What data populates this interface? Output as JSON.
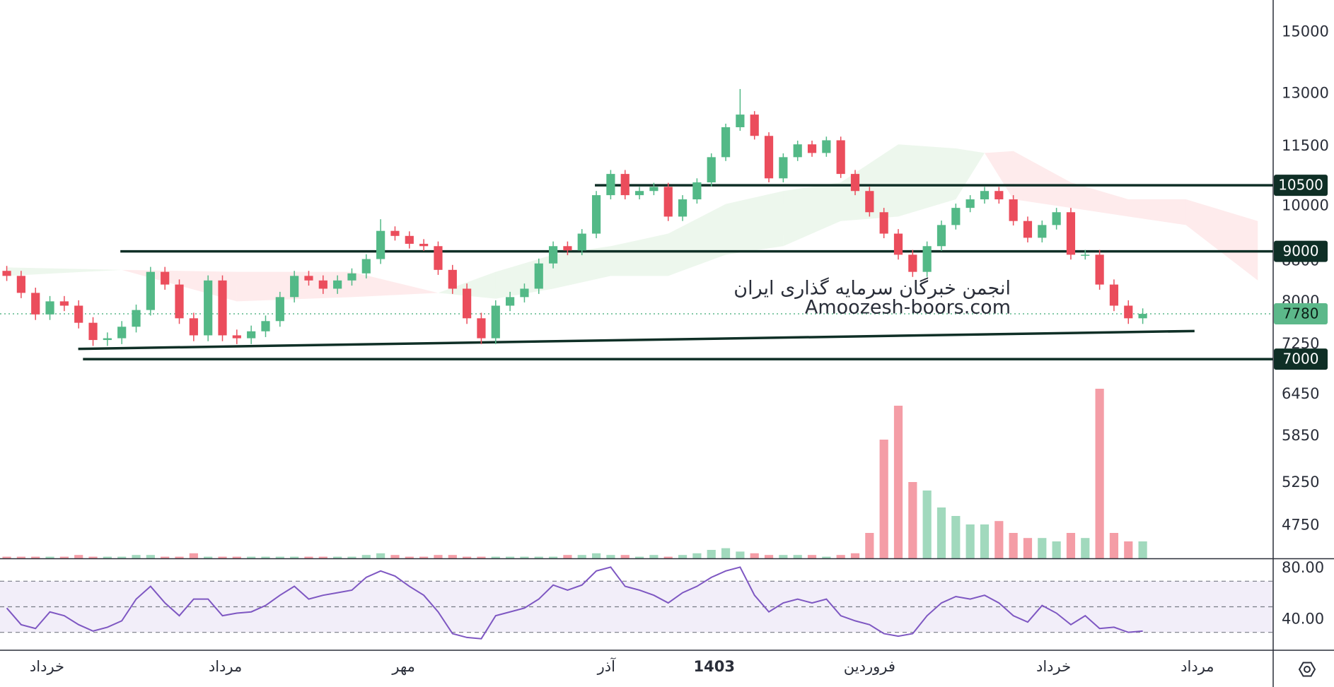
{
  "chart_data": [
    {
      "type": "candlestick",
      "log_scale": true,
      "xlim": [
        -0.47,
        88.07
      ],
      "ylim": [
        4400,
        16170
      ],
      "yticks": [
        15000,
        13000,
        11500,
        10000,
        8800,
        8000,
        7250,
        6450,
        5850,
        5250,
        4750
      ],
      "up_color": "#53b987",
      "down_color": "#eb4d5c",
      "open": [
        8600,
        8500,
        8170,
        7770,
        8010,
        7930,
        7620,
        7320,
        7350,
        7550,
        7850,
        8580,
        8330,
        7700,
        7400,
        8410,
        7400,
        7350,
        7470,
        7650,
        8090,
        8500,
        8410,
        8250,
        8410,
        8550,
        8840,
        9440,
        9330,
        9160,
        9110,
        8620,
        8250,
        7700,
        7350,
        7930,
        8090,
        8250,
        8750,
        9110,
        9020,
        9380,
        10260,
        10780,
        10260,
        10360,
        10460,
        9760,
        10160,
        10570,
        11210,
        12020,
        12380,
        11780,
        10670,
        11210,
        11550,
        11320,
        11660,
        10780,
        10360,
        9860,
        9380,
        8930,
        8580,
        9110,
        9570,
        9960,
        10160,
        10360,
        10160,
        9660,
        9290,
        9570,
        9860,
        8930,
        8930,
        8330,
        7930,
        7700
      ],
      "high": [
        8700,
        8600,
        8270,
        8110,
        8110,
        8030,
        7720,
        7450,
        7650,
        7950,
        8680,
        8680,
        8430,
        7800,
        8510,
        8510,
        7500,
        7570,
        7750,
        8190,
        8600,
        8600,
        8510,
        8510,
        8650,
        8940,
        9700,
        9540,
        9430,
        9260,
        9210,
        8720,
        8350,
        7800,
        8030,
        8190,
        8350,
        8850,
        9210,
        9210,
        9480,
        10360,
        10880,
        10880,
        10460,
        10560,
        10560,
        10260,
        10670,
        11310,
        12120,
        13140,
        12480,
        11880,
        11310,
        11650,
        11650,
        11760,
        11760,
        10880,
        10460,
        9960,
        9480,
        9030,
        9210,
        9670,
        10060,
        10260,
        10460,
        10460,
        10260,
        9760,
        9670,
        9960,
        9960,
        9030,
        9030,
        8430,
        8030,
        7880
      ],
      "low": [
        8400,
        8070,
        7670,
        7670,
        7830,
        7520,
        7220,
        7220,
        7250,
        7450,
        7750,
        8230,
        7600,
        7300,
        7300,
        7300,
        7250,
        7250,
        7370,
        7550,
        7990,
        8310,
        8150,
        8150,
        8310,
        8450,
        8740,
        9230,
        9060,
        9010,
        8520,
        8150,
        7600,
        7250,
        7250,
        7830,
        7990,
        8150,
        8650,
        8920,
        8920,
        9280,
        10160,
        10160,
        10160,
        10260,
        9660,
        9660,
        10060,
        10470,
        11110,
        11920,
        11680,
        10570,
        10570,
        11110,
        11220,
        11220,
        10680,
        10260,
        9760,
        9280,
        8830,
        8480,
        8480,
        9010,
        9470,
        9860,
        10060,
        10060,
        9560,
        9190,
        9190,
        9470,
        8830,
        8830,
        8230,
        7830,
        7600,
        7600
      ],
      "close": [
        8500,
        8170,
        7770,
        8010,
        7930,
        7620,
        7320,
        7350,
        7550,
        7850,
        8580,
        8330,
        7700,
        7400,
        8410,
        7400,
        7350,
        7470,
        7650,
        8090,
        8500,
        8410,
        8250,
        8410,
        8550,
        8840,
        9440,
        9330,
        9160,
        9110,
        8620,
        8250,
        7700,
        7350,
        7930,
        8090,
        8250,
        8750,
        9110,
        9020,
        9380,
        10260,
        10780,
        10260,
        10360,
        10460,
        9760,
        10160,
        10570,
        11210,
        12020,
        12380,
        11780,
        10670,
        11210,
        11550,
        11320,
        11660,
        10780,
        10360,
        9860,
        9380,
        8930,
        8580,
        9110,
        9570,
        9960,
        10160,
        10360,
        10160,
        9660,
        9290,
        9570,
        9860,
        8930,
        8930,
        8330,
        7930,
        7700,
        7780
      ],
      "volume": [
        1,
        1,
        1,
        1,
        1,
        2,
        1,
        1,
        1,
        2,
        2,
        1,
        1,
        3,
        1,
        1,
        1,
        1,
        1,
        1,
        1,
        1,
        1,
        1,
        1,
        2,
        3,
        2,
        1,
        1,
        2,
        2,
        1,
        1,
        1,
        1,
        1,
        1,
        1,
        2,
        2,
        3,
        2,
        2,
        1,
        2,
        1,
        2,
        3,
        5,
        6,
        4,
        3,
        2,
        2,
        2,
        2,
        1,
        2,
        3,
        15,
        70,
        90,
        45,
        40,
        30,
        25,
        20,
        20,
        22,
        15,
        12,
        12,
        10,
        15,
        12,
        100,
        15,
        10,
        10
      ],
      "cloud": {
        "x": [
          0,
          8,
          16,
          24,
          30,
          34,
          38,
          42,
          46,
          50,
          54,
          58,
          62,
          66,
          68,
          70,
          74,
          78,
          82,
          87
        ],
        "span_a": [
          8670,
          8620,
          8010,
          8090,
          8170,
          8580,
          8930,
          9110,
          9380,
          10050,
          10360,
          10570,
          11550,
          11440,
          11320,
          10160,
          9960,
          9760,
          9570,
          8410
        ],
        "span_b": [
          8500,
          8620,
          8580,
          8580,
          8170,
          8060,
          8250,
          8500,
          8500,
          8930,
          9110,
          9660,
          9760,
          10160,
          11320,
          11370,
          10570,
          10160,
          10160,
          9660
        ],
        "up_color": "#4caf50",
        "down_color": "#f23645"
      },
      "levels": [
        {
          "value": 10500,
          "x_start": 40.9
        },
        {
          "value": 9000,
          "x_start": 7.9
        },
        {
          "value": 7000,
          "x_start": 5.3
        }
      ],
      "level_color": "#0f2f26",
      "trendline": {
        "x": [
          4.97,
          82.6
        ],
        "y": [
          7170,
          7475
        ]
      },
      "last_price": 7780,
      "last_color": "#5cb88a",
      "annotations": [
        "انجمن خبرگان سرمایه گذاری ایران",
        "Amoozesh-boors.com"
      ]
    },
    {
      "type": "line",
      "xlim": [
        -0.47,
        88.07
      ],
      "ylim": [
        16,
        87.3
      ],
      "color": "#7e57c2",
      "yticks": [
        {
          "value": 80,
          "label": "80.00"
        },
        {
          "value": 40,
          "label": "40.00"
        }
      ],
      "levels": [
        70,
        50,
        30
      ],
      "values": [
        49,
        36,
        33,
        46,
        43,
        36,
        31,
        34,
        39,
        56,
        66,
        53,
        43,
        56,
        56,
        43,
        45,
        46,
        51,
        59,
        66,
        56,
        59,
        61,
        63,
        73,
        78,
        74,
        66,
        59,
        46,
        29,
        26,
        25,
        43,
        46,
        49,
        56,
        67,
        63,
        67,
        78,
        81,
        66,
        63,
        59,
        53,
        61,
        66,
        73,
        78,
        81,
        59,
        46,
        53,
        56,
        53,
        56,
        43,
        39,
        36,
        29,
        27,
        29,
        43,
        53,
        58,
        56,
        59,
        53,
        43,
        38,
        51,
        45,
        36,
        43,
        33,
        34,
        30,
        31
      ],
      "xticks": [
        {
          "value": 2.8,
          "label": "خرداد"
        },
        {
          "value": 15.2,
          "label": "مرداد"
        },
        {
          "value": 27.6,
          "label": "مهر"
        },
        {
          "value": 41.7,
          "label": "آذر"
        },
        {
          "value": 49.2,
          "label": "1403",
          "bold": true
        },
        {
          "value": 60,
          "label": "فروردین"
        },
        {
          "value": 72.8,
          "label": "خرداد"
        },
        {
          "value": 82.8,
          "label": "مرداد"
        }
      ]
    }
  ]
}
